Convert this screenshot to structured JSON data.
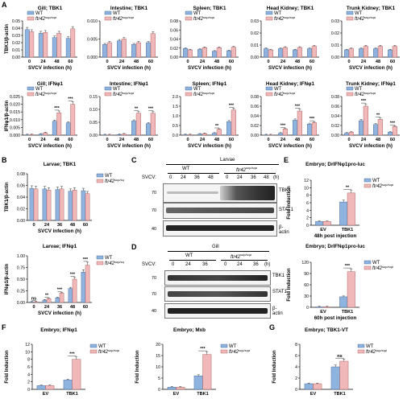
{
  "colors": {
    "wt": "#8fb3df",
    "ko": "#f0b8b8",
    "wt_stroke": "#3d5f8f",
    "ko_stroke": "#a05050"
  },
  "letters": {
    "A": "A",
    "B": "B",
    "C": "C",
    "D": "D",
    "E": "E",
    "F": "F",
    "G": "G"
  },
  "legend": {
    "wt": "WT",
    "ko_base": "ftr42",
    "ko_sup": "sup/sup"
  },
  "chart_data": [
    {
      "type": "bar",
      "title": "Gill; TBK1",
      "ylabel": "TBK1/β-actin",
      "xlabel": "SVCV infection (h)",
      "categories": [
        "0",
        "24",
        "48",
        "60"
      ],
      "ylim": [
        0,
        0.05
      ],
      "yticks": [
        "0.00",
        "0.01",
        "0.02",
        "0.03",
        "0.04",
        "0.05"
      ],
      "series": [
        {
          "name": "WT",
          "values": [
            0.038,
            0.033,
            0.027,
            0.026
          ]
        },
        {
          "name": "ftr42sup/sup",
          "values": [
            0.035,
            0.034,
            0.033,
            0.039
          ]
        }
      ],
      "marks": [
        "",
        "",
        "",
        ""
      ]
    },
    {
      "type": "bar",
      "title": "Intestine; TBK1",
      "ylabel": "",
      "xlabel": "SVCV infection (h)",
      "categories": [
        "0",
        "24",
        "48",
        "60"
      ],
      "ylim": [
        0,
        0.01
      ],
      "yticks": [
        "0.000",
        "0.005",
        "0.010"
      ],
      "series": [
        {
          "name": "WT",
          "values": [
            0.0035,
            0.0045,
            0.0035,
            0.004
          ]
        },
        {
          "name": "ftr42sup/sup",
          "values": [
            0.004,
            0.005,
            0.004,
            0.0065
          ]
        }
      ],
      "marks": [
        "",
        "",
        "",
        ""
      ]
    },
    {
      "type": "bar",
      "title": "Spleen; TBK1",
      "ylabel": "",
      "xlabel": "SVCV infection (h)",
      "categories": [
        "0",
        "24",
        "48",
        "60"
      ],
      "ylim": [
        0,
        0.08
      ],
      "yticks": [
        "0.00",
        "0.02",
        "0.04",
        "0.06",
        "0.08"
      ],
      "series": [
        {
          "name": "WT",
          "values": [
            0.019,
            0.017,
            0.013,
            0.014
          ]
        },
        {
          "name": "ftr42sup/sup",
          "values": [
            0.016,
            0.021,
            0.021,
            0.022
          ]
        }
      ],
      "marks": [
        "",
        "",
        "",
        ""
      ]
    },
    {
      "type": "bar",
      "title": "Head Kidney; TBK1",
      "ylabel": "",
      "xlabel": "SVCV infection (h)",
      "categories": [
        "0",
        "24",
        "48",
        "60"
      ],
      "ylim": [
        0,
        0.03
      ],
      "yticks": [
        "0.00",
        "0.01",
        "0.02",
        "0.03"
      ],
      "series": [
        {
          "name": "WT",
          "values": [
            0.007,
            0.007,
            0.006,
            0.007
          ]
        },
        {
          "name": "ftr42sup/sup",
          "values": [
            0.006,
            0.008,
            0.008,
            0.009
          ]
        }
      ],
      "marks": [
        "",
        "",
        "",
        ""
      ]
    },
    {
      "type": "bar",
      "title": "Trunk Kidney; TBK1",
      "ylabel": "",
      "xlabel": "SVCV infection (h)",
      "categories": [
        "0",
        "24",
        "48",
        "60"
      ],
      "ylim": [
        0,
        0.03
      ],
      "yticks": [
        "0.00",
        "0.01",
        "0.02",
        "0.03"
      ],
      "series": [
        {
          "name": "WT",
          "values": [
            0.006,
            0.007,
            0.007,
            0.006
          ]
        },
        {
          "name": "ftr42sup/sup",
          "values": [
            0.007,
            0.009,
            0.009,
            0.009
          ]
        }
      ],
      "marks": [
        "",
        "",
        "",
        ""
      ]
    },
    {
      "type": "bar",
      "title": "Gill; IFNφ1",
      "ylabel": "IFNφ1/β-actin",
      "xlabel": "SVCV infection (h)",
      "categories": [
        "0",
        "24",
        "48",
        "60"
      ],
      "ylim": [
        0,
        0.025
      ],
      "yticks": [
        "0.000",
        "0.005",
        "0.010",
        "0.015",
        "0.020",
        "0.025"
      ],
      "series": [
        {
          "name": "WT",
          "values": [
            0.0002,
            0.0006,
            0.009,
            0.008
          ]
        },
        {
          "name": "ftr42sup/sup",
          "values": [
            0.0003,
            0.0015,
            0.0145,
            0.02
          ]
        }
      ],
      "marks": [
        "",
        "",
        "***",
        "***"
      ]
    },
    {
      "type": "bar",
      "title": "Intestine; IFNφ1",
      "ylabel": "",
      "xlabel": "SVCV infection (h)",
      "categories": [
        "0",
        "24",
        "48",
        "60"
      ],
      "ylim": [
        0,
        0.15
      ],
      "yticks": [
        "0.00",
        "0.05",
        "0.10",
        "0.15"
      ],
      "series": [
        {
          "name": "WT",
          "values": [
            0.001,
            0.002,
            0.055,
            0.045
          ]
        },
        {
          "name": "ftr42sup/sup",
          "values": [
            0.001,
            0.004,
            0.085,
            0.085
          ]
        }
      ],
      "marks": [
        "",
        "",
        "**",
        "***"
      ]
    },
    {
      "type": "bar",
      "title": "Spleen; IFNφ1",
      "ylabel": "",
      "xlabel": "SVCV infection (h)",
      "categories": [
        "0",
        "24",
        "48",
        "60"
      ],
      "ylim": [
        0,
        2.0
      ],
      "yticks": [
        "0.0",
        "0.5",
        "1.0",
        "1.5",
        "2.0"
      ],
      "series": [
        {
          "name": "WT",
          "values": [
            0.02,
            0.05,
            0.1,
            0.7
          ]
        },
        {
          "name": "ftr42sup/sup",
          "values": [
            0.02,
            0.08,
            0.3,
            1.3
          ]
        }
      ],
      "marks": [
        "",
        "",
        "**",
        "***"
      ]
    },
    {
      "type": "bar",
      "title": "Head Kidney; IFNφ1",
      "ylabel": "",
      "xlabel": "SVCV infection (h)",
      "categories": [
        "0",
        "24",
        "48",
        "60"
      ],
      "ylim": [
        0,
        0.08
      ],
      "yticks": [
        "0.00",
        "0.02",
        "0.04",
        "0.06",
        "0.08"
      ],
      "series": [
        {
          "name": "WT",
          "values": [
            0.0005,
            0.004,
            0.031,
            0.023
          ]
        },
        {
          "name": "ftr42sup/sup",
          "values": [
            0.0005,
            0.013,
            0.05,
            0.026
          ]
        }
      ],
      "marks": [
        "",
        "***",
        "***",
        "***"
      ]
    },
    {
      "type": "bar",
      "title": "Trunk Kidney; IFNφ1",
      "ylabel": "",
      "xlabel": "SVCV infection (h)",
      "categories": [
        "0",
        "24",
        "48",
        "60"
      ],
      "ylim": [
        0,
        0.08
      ],
      "yticks": [
        "0.00",
        "0.02",
        "0.04",
        "0.06",
        "0.08"
      ],
      "series": [
        {
          "name": "WT",
          "values": [
            0.004,
            0.03,
            0.022,
            0.006
          ]
        },
        {
          "name": "ftr42sup/sup",
          "values": [
            0.006,
            0.06,
            0.033,
            0.018
          ]
        }
      ],
      "marks": [
        "",
        "***",
        "**",
        "***"
      ]
    },
    {
      "type": "bar",
      "title": "Larvae; TBK1",
      "ylabel": "TBK1/β-actin",
      "xlabel": "SVCV infection (h)",
      "categories": [
        "0",
        "24",
        "36",
        "48",
        "60"
      ],
      "ylim": [
        0,
        0.08
      ],
      "yticks": [
        "0.00",
        "0.02",
        "0.04",
        "0.06",
        "0.08"
      ],
      "series": [
        {
          "name": "WT",
          "values": [
            0.055,
            0.054,
            0.053,
            0.05,
            0.051
          ]
        },
        {
          "name": "ftr42sup/sup",
          "values": [
            0.054,
            0.052,
            0.054,
            0.052,
            0.046
          ]
        }
      ],
      "marks": [
        "",
        "",
        "",
        "",
        ""
      ]
    },
    {
      "type": "bar",
      "title": "Larvae; IFNφ1",
      "ylabel": "IFNφ1/β-actin",
      "xlabel": "SVCV infection (h)",
      "categories": [
        "0",
        "24",
        "36",
        "48",
        "60"
      ],
      "ylim": [
        0,
        1.0
      ],
      "yticks": [
        "0.00",
        "0.25",
        "0.50",
        "0.75",
        "1.00"
      ],
      "series": [
        {
          "name": "WT",
          "values": [
            0.01,
            0.05,
            0.1,
            0.3,
            0.65
          ]
        },
        {
          "name": "ftr42sup/sup",
          "values": [
            0.01,
            0.08,
            0.2,
            0.5,
            0.8
          ]
        }
      ],
      "marks": [
        "ns",
        "**",
        "***",
        "***",
        "***"
      ]
    },
    {
      "type": "bar",
      "title": "Embryo; DrIFNφ1pro-luc",
      "ylabel": "Fold Induction",
      "xlabel": "48h post injection",
      "categories": [
        "EV",
        "TBK1"
      ],
      "ylim": [
        0,
        12
      ],
      "yticks": [
        "0",
        "2",
        "4",
        "6",
        "8",
        "10",
        "12"
      ],
      "series": [
        {
          "name": "WT",
          "values": [
            1,
            6.2
          ]
        },
        {
          "name": "ftr42sup/sup",
          "values": [
            1,
            8.6
          ]
        }
      ],
      "marks": [
        "",
        "**"
      ]
    },
    {
      "type": "bar",
      "title": "Embryo; DrIFNφ1pro-luc",
      "ylabel": "Fold Induction",
      "xlabel": "60h post injection",
      "categories": [
        "EV",
        "TBK1"
      ],
      "ylim": [
        0,
        120
      ],
      "yticks": [
        "0",
        "30",
        "60",
        "90",
        "120"
      ],
      "series": [
        {
          "name": "WT",
          "values": [
            1,
            28
          ]
        },
        {
          "name": "ftr42sup/sup",
          "values": [
            1,
            95
          ]
        }
      ],
      "marks": [
        "",
        "***"
      ]
    },
    {
      "type": "bar",
      "title": "Embryo; IFNφ1",
      "ylabel": "Fold Induction",
      "xlabel": "",
      "categories": [
        "EV",
        "TBK1"
      ],
      "ylim": [
        0,
        12
      ],
      "yticks": [
        "0",
        "2",
        "4",
        "6",
        "8",
        "10",
        "12"
      ],
      "series": [
        {
          "name": "WT",
          "values": [
            1,
            2.5
          ]
        },
        {
          "name": "ftr42sup/sup",
          "values": [
            1,
            8
          ]
        }
      ],
      "marks": [
        "",
        "***"
      ]
    },
    {
      "type": "bar",
      "title": "Embryo; Mxb",
      "ylabel": "Fold Induction",
      "xlabel": "",
      "categories": [
        "EV",
        "TBK1"
      ],
      "ylim": [
        0,
        20
      ],
      "yticks": [
        "0",
        "5",
        "10",
        "15",
        "20"
      ],
      "series": [
        {
          "name": "WT",
          "values": [
            1,
            6
          ]
        },
        {
          "name": "ftr42sup/sup",
          "values": [
            1,
            15.5
          ]
        }
      ],
      "marks": [
        "",
        "***"
      ]
    },
    {
      "type": "bar",
      "title": "Embryo; TBK1-VT",
      "ylabel": "Fold Induction",
      "xlabel": "",
      "categories": [
        "EV",
        "TBK1"
      ],
      "ylim": [
        0,
        8
      ],
      "yticks": [
        "0",
        "2",
        "4",
        "6",
        "8"
      ],
      "series": [
        {
          "name": "WT",
          "values": [
            1,
            4
          ]
        },
        {
          "name": "ftr42sup/sup",
          "values": [
            1,
            5
          ]
        }
      ],
      "marks": [
        "",
        "ns"
      ]
    }
  ],
  "blotC": {
    "title": "Larvae",
    "wt": "WT",
    "ko_base": "ftr42",
    "ko_sup": "sup/sup",
    "svcv": "SVCV:",
    "times": [
      "0",
      "24",
      "36",
      "48",
      "0",
      "24",
      "36",
      "48"
    ],
    "unit": "(h)",
    "kda": [
      "70",
      "70",
      "40"
    ],
    "bands": [
      "TBK1",
      "STAT1",
      "β-actin"
    ]
  },
  "blotD": {
    "title": "Gill",
    "wt": "WT",
    "ko_base": "ftr42",
    "ko_sup": "sup/sup",
    "svcv": "SVCV:",
    "times": [
      "0",
      "24",
      "36",
      "0",
      "24",
      "36"
    ],
    "unit": "(h)",
    "kda": [
      "70",
      "70",
      "40"
    ],
    "bands": [
      "TBK1",
      "STAT1",
      "β-actin"
    ]
  }
}
